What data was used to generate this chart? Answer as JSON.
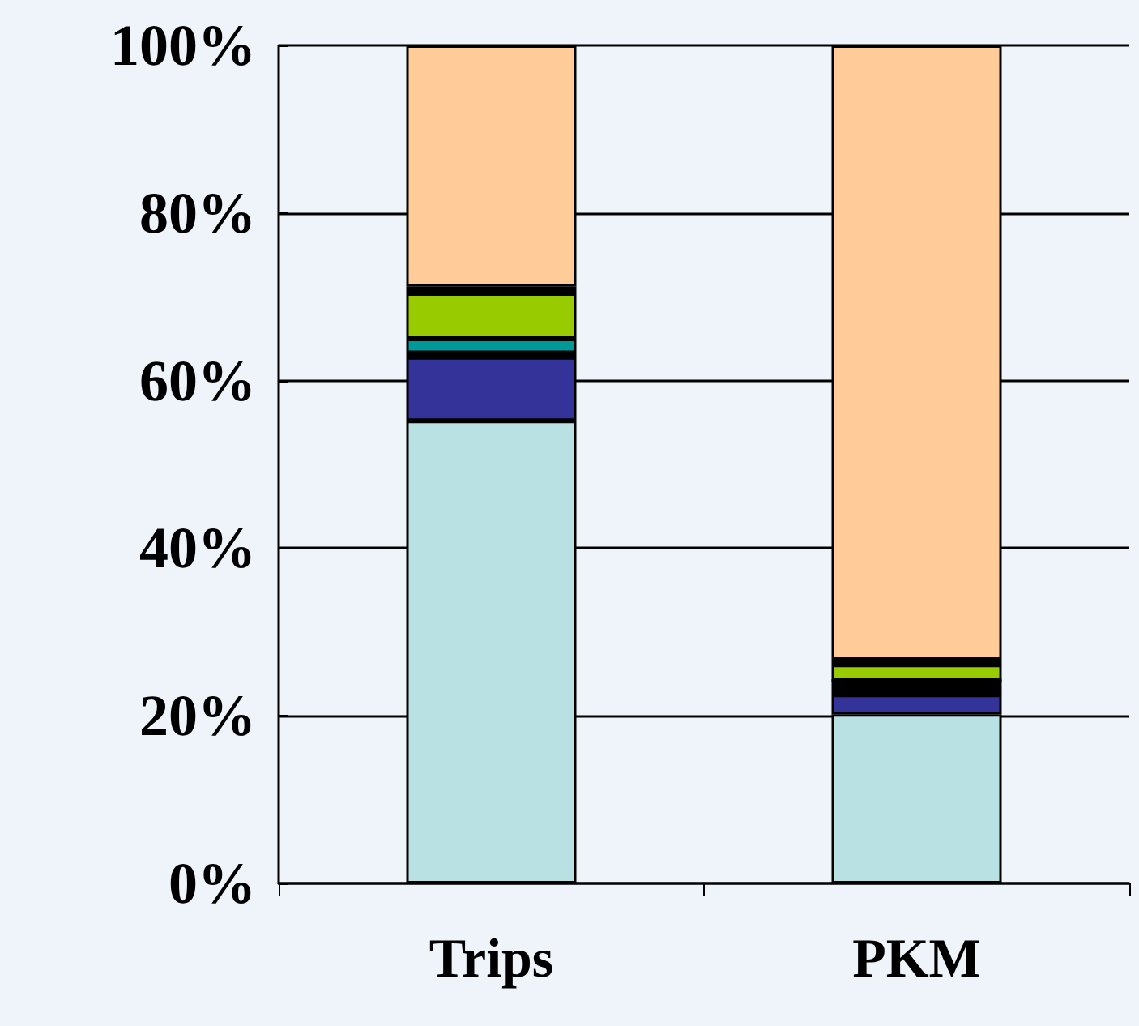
{
  "chart_data": {
    "type": "bar",
    "stacked": true,
    "categories": [
      "Trips",
      "PKM"
    ],
    "series": [
      {
        "color": "#b9e0e3",
        "values": [
          55.2,
          20.2
        ]
      },
      {
        "color": "#333399",
        "values": [
          7.6,
          2.3
        ]
      },
      {
        "color": "#000000",
        "values": [
          0.5,
          1.7
        ]
      },
      {
        "color": "#009999",
        "values": [
          1.7,
          0
        ]
      },
      {
        "color": "#99cc00",
        "values": [
          5.4,
          1.9
        ]
      },
      {
        "color": "#000000",
        "values": [
          0.8,
          0.6
        ]
      },
      {
        "color": "#ffcc99",
        "values": [
          28.8,
          73.3
        ]
      }
    ],
    "ylim": [
      0,
      100
    ],
    "yticks": [
      {
        "value": 0,
        "label": "0%"
      },
      {
        "value": 20,
        "label": "20%"
      },
      {
        "value": 40,
        "label": "40%"
      },
      {
        "value": 60,
        "label": "60%"
      },
      {
        "value": 80,
        "label": "80%"
      },
      {
        "value": 100,
        "label": "100%"
      }
    ],
    "grid": "y"
  }
}
